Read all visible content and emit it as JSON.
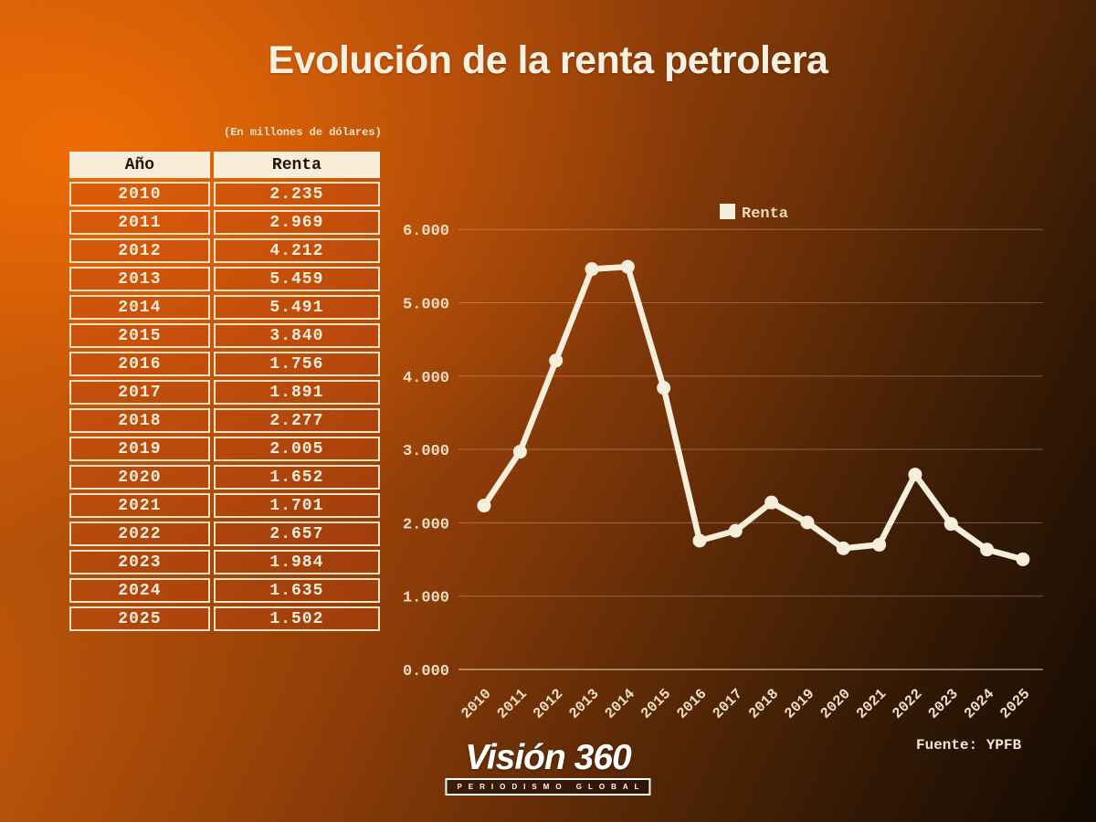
{
  "title": "Evolución de la renta petrolera",
  "subtitle": "(En millones de dólares)",
  "table": {
    "headers": [
      "Año",
      "Renta"
    ],
    "rows": [
      [
        "2010",
        "2.235"
      ],
      [
        "2011",
        "2.969"
      ],
      [
        "2012",
        "4.212"
      ],
      [
        "2013",
        "5.459"
      ],
      [
        "2014",
        "5.491"
      ],
      [
        "2015",
        "3.840"
      ],
      [
        "2016",
        "1.756"
      ],
      [
        "2017",
        "1.891"
      ],
      [
        "2018",
        "2.277"
      ],
      [
        "2019",
        "2.005"
      ],
      [
        "2020",
        "1.652"
      ],
      [
        "2021",
        "1.701"
      ],
      [
        "2022",
        "2.657"
      ],
      [
        "2023",
        "1.984"
      ],
      [
        "2024",
        "1.635"
      ],
      [
        "2025",
        "1.502"
      ]
    ]
  },
  "chart_data": {
    "type": "line",
    "title": "",
    "x": [
      "2010",
      "2011",
      "2012",
      "2013",
      "2014",
      "2015",
      "2016",
      "2017",
      "2018",
      "2019",
      "2020",
      "2021",
      "2022",
      "2023",
      "2024",
      "2025"
    ],
    "series": [
      {
        "name": "Renta",
        "values": [
          2235,
          2969,
          4212,
          5459,
          5491,
          3840,
          1756,
          1891,
          2277,
          2005,
          1652,
          1701,
          2657,
          1984,
          1635,
          1502
        ]
      }
    ],
    "xlabel": "",
    "ylabel": "",
    "ylim": [
      0,
      6000
    ],
    "ytick_step": 1000,
    "ytick_labels": [
      "0.000",
      "1.000",
      "2.000",
      "3.000",
      "4.000",
      "5.000",
      "6.000"
    ],
    "grid": true,
    "legend": {
      "label": "Renta",
      "position": "top-right"
    },
    "line_color": "#f7eedb",
    "marker_color": "#f7eedb",
    "tick_color": "#f0dfc4",
    "grid_color": "rgba(247,231,206,0.28)",
    "axis_color": "rgba(247,231,206,0.6)"
  },
  "source": "Fuente: YPFB",
  "logo": {
    "name": "Visión 360",
    "tagline": "PERIODISMO GLOBAL"
  },
  "colors": {
    "background_bright": "#e0660a",
    "background_dark": "#140a02",
    "cream": "#f7eedb",
    "table_header_bg": "#f7edd9",
    "table_border": "#f2e2c4",
    "title_text": "#f8f0e1"
  }
}
